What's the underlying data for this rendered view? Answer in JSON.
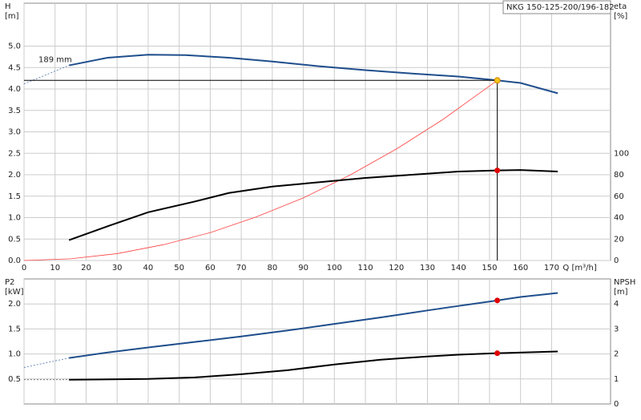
{
  "chart_data": [
    {
      "type": "line",
      "title": "NKG 150-125-200/196-182",
      "annotation": "189 mm",
      "x_label": "Q [m³/h]",
      "y_label": [
        "H",
        "[m]"
      ],
      "y2_label": [
        "eta",
        "[%]"
      ],
      "xlim": [
        0,
        189
      ],
      "xticks": [
        0,
        10,
        20,
        30,
        40,
        50,
        60,
        70,
        80,
        90,
        100,
        110,
        120,
        130,
        140,
        150,
        160,
        170
      ],
      "ylim": [
        0,
        6
      ],
      "yticks": [
        {
          "value": 0,
          "label": "0.0"
        },
        0.5,
        {
          "value": 1,
          "label": "1.0"
        },
        1.5,
        {
          "value": 2,
          "label": "2.0"
        },
        2.5,
        {
          "value": 3,
          "label": "3.0"
        },
        3.5,
        {
          "value": 4,
          "label": "4.0"
        },
        4.5,
        {
          "value": 5,
          "label": "5.0"
        }
      ],
      "y2lim": [
        0,
        240
      ],
      "y2ticks": [
        0,
        20,
        40,
        60,
        80,
        100
      ],
      "grid": true,
      "series": [
        {
          "color": "#ff4040",
          "width": 0.8,
          "x": [
            0,
            15,
            30,
            45,
            60,
            75,
            90,
            105,
            120,
            135,
            152.5
          ],
          "values": [
            0,
            0.04,
            0.16,
            0.37,
            0.65,
            1.02,
            1.46,
            1.99,
            2.6,
            3.29,
            4.2
          ]
        },
        {
          "color": "#4a6fa5",
          "width": 0.8,
          "dashed": true,
          "x": [
            0,
            14.5
          ],
          "values": [
            4.12,
            4.55
          ]
        },
        {
          "color": "#1f4e8c",
          "width": 2,
          "x": [
            14.5,
            27,
            40,
            52,
            66,
            80,
            95,
            110,
            125,
            140,
            152.5,
            160,
            172
          ],
          "values": [
            4.55,
            4.73,
            4.8,
            4.79,
            4.73,
            4.64,
            4.53,
            4.44,
            4.36,
            4.29,
            4.2,
            4.14,
            3.9
          ]
        },
        {
          "color": "#000000",
          "width": 2,
          "axis": "y2",
          "x": [
            14.5,
            27,
            40,
            55,
            66,
            80,
            95,
            110,
            125,
            140,
            152.5,
            160,
            172
          ],
          "values": [
            19,
            32,
            45,
            55,
            63,
            69,
            73,
            77,
            80,
            83,
            84,
            84.4,
            83
          ]
        },
        {
          "color": "#f5c518",
          "marker": true,
          "crosshair": true,
          "x": [
            152.5
          ],
          "values": [
            4.2
          ]
        },
        {
          "color": "#e00000",
          "marker": true,
          "axis": "y2",
          "x": [
            152.5
          ],
          "values": [
            84
          ]
        }
      ]
    },
    {
      "type": "line",
      "y_label": [
        "P2",
        "[kW]"
      ],
      "y2_label": [
        "NPSH",
        "[m]"
      ],
      "xlim": [
        0,
        189
      ],
      "xticks": [
        0,
        10,
        20,
        30,
        40,
        50,
        60,
        70,
        80,
        90,
        100,
        110,
        120,
        130,
        140,
        150,
        160,
        170
      ],
      "ylim": [
        0,
        2.5
      ],
      "yticks": [
        0.5,
        {
          "value": 1,
          "label": "1.0"
        },
        1.5,
        {
          "value": 2,
          "label": "2.0"
        }
      ],
      "y2lim": [
        0,
        5
      ],
      "y2ticks": [
        0,
        1,
        2,
        3,
        4
      ],
      "grid": true,
      "series": [
        {
          "color": "#4a6fa5",
          "width": 0.8,
          "dashed": true,
          "x": [
            0,
            14.5
          ],
          "values": [
            0.73,
            0.92
          ]
        },
        {
          "color": "#1f4e8c",
          "width": 2,
          "x": [
            14.5,
            27,
            40,
            55,
            70,
            85,
            100,
            115,
            130,
            140,
            152.5,
            160,
            172
          ],
          "values": [
            0.92,
            1.03,
            1.13,
            1.24,
            1.35,
            1.47,
            1.6,
            1.73,
            1.87,
            1.96,
            2.07,
            2.14,
            2.22
          ]
        },
        {
          "color": "#555555",
          "width": 0.8,
          "dashed": true,
          "axis": "y2",
          "x": [
            0,
            14.5
          ],
          "values": [
            0.97,
            0.97
          ]
        },
        {
          "color": "#000000",
          "width": 2,
          "axis": "y2",
          "x": [
            14.5,
            40,
            55,
            70,
            85,
            100,
            115,
            130,
            140,
            152.5,
            172
          ],
          "values": [
            0.97,
            1.0,
            1.06,
            1.19,
            1.35,
            1.58,
            1.77,
            1.9,
            1.97,
            2.03,
            2.1
          ]
        },
        {
          "color": "#e00000",
          "marker": true,
          "x": [
            152.5
          ],
          "values": [
            2.07
          ]
        },
        {
          "color": "#e00000",
          "marker": true,
          "axis": "y2",
          "x": [
            152.5
          ],
          "values": [
            2.03
          ]
        }
      ]
    }
  ]
}
